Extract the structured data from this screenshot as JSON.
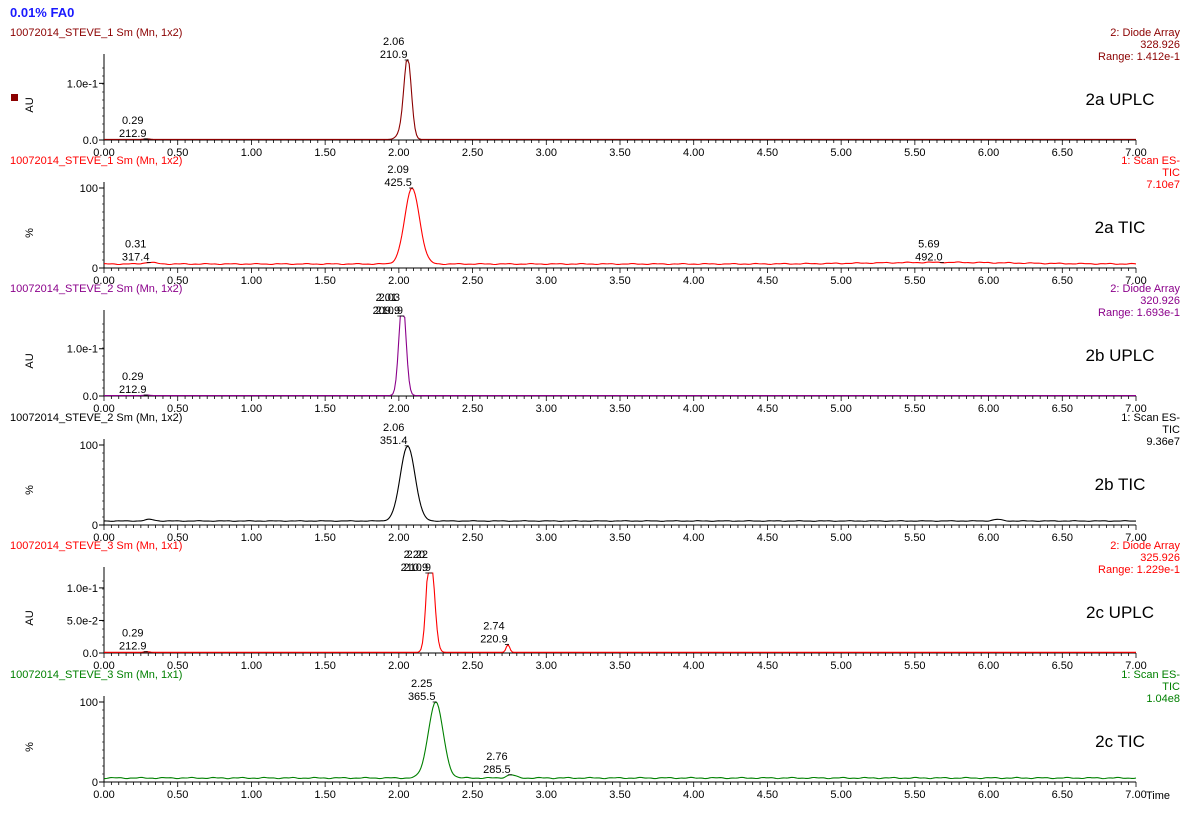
{
  "page": {
    "title": "0.01% FA0",
    "x_axis_label": "Time"
  },
  "colors": {
    "title": "#1a1aff",
    "axis": "#000000",
    "panel_a_uv": "#8b0000",
    "panel_a_tic": "#ff0000",
    "panel_b_uv": "#8b008b",
    "panel_b_tic": "#000000",
    "panel_c_uv": "#ff0000",
    "panel_c_tic": "#008000"
  },
  "chart_data": [
    {
      "type": "line",
      "sample": "10072014_STEVE_1 Sm (Mn, 1x2)",
      "color": "#8b0000",
      "trace_label": "2a UPLC",
      "header_right": [
        "2: Diode Array",
        "328.926",
        "Range: 1.412e-1"
      ],
      "ylabel": "AU",
      "xlim": [
        0,
        7
      ],
      "ylim": [
        0,
        0.1412
      ],
      "yticks": [
        {
          "value": 0,
          "label": "0.0"
        },
        {
          "value": 0.1,
          "label": "1.0e-1"
        }
      ],
      "baseline": 0.001,
      "noise": 0,
      "peaks": [
        {
          "time": 0.29,
          "height": 0.001,
          "width": 0.02,
          "label": "212.9"
        },
        {
          "time": 2.06,
          "height": 0.1412,
          "width": 0.025,
          "label": "210.9"
        },
        {
          "time": 2.02,
          "height": 0.012,
          "width": 0.03,
          "label": null
        }
      ]
    },
    {
      "type": "line",
      "sample": "10072014_STEVE_1 Sm (Mn, 1x2)",
      "color": "#ff0000",
      "trace_label": "2a TIC",
      "header_right": [
        "1: Scan ES-",
        "TIC",
        "7.10e7"
      ],
      "ylabel": "%",
      "xlim": [
        0,
        7
      ],
      "ylim": [
        0,
        100
      ],
      "yticks": [
        {
          "value": 0,
          "label": "0"
        },
        {
          "value": 100,
          "label": "100"
        }
      ],
      "baseline": 5,
      "noise": 0.8,
      "peaks": [
        {
          "time": 0.31,
          "height": 2,
          "width": 0.04,
          "label": "317.4"
        },
        {
          "time": 2.09,
          "height": 95,
          "width": 0.05,
          "label": "425.5"
        },
        {
          "time": 5.69,
          "height": 2,
          "width": 0.5,
          "label": "492.0"
        }
      ]
    },
    {
      "type": "line",
      "sample": "10072014_STEVE_2 Sm (Mn, 1x2)",
      "color": "#8b008b",
      "trace_label": "2b UPLC",
      "header_right": [
        "2: Diode Array",
        "320.926",
        "Range: 1.693e-1"
      ],
      "ylabel": "AU",
      "xlim": [
        0,
        7
      ],
      "ylim": [
        0,
        0.1693
      ],
      "yticks": [
        {
          "value": 0,
          "label": "0.0"
        },
        {
          "value": 0.1,
          "label": "1.0e-1"
        }
      ],
      "baseline": 0.001,
      "noise": 0,
      "peaks": [
        {
          "time": 0.29,
          "height": 0.001,
          "width": 0.02,
          "label": "212.9"
        },
        {
          "time": 2.03,
          "height": 0.16,
          "width": 0.022,
          "label": "210.9"
        },
        {
          "time": 2.01,
          "height": 0.065,
          "width": 0.02,
          "label": "209.9"
        }
      ]
    },
    {
      "type": "line",
      "sample": "10072014_STEVE_2 Sm (Mn, 1x2)",
      "color": "#000000",
      "trace_label": "2b TIC",
      "header_right": [
        "1: Scan ES-",
        "TIC",
        "9.36e7"
      ],
      "ylabel": "%",
      "xlim": [
        0,
        7
      ],
      "ylim": [
        0,
        100
      ],
      "yticks": [
        {
          "value": 0,
          "label": "0"
        },
        {
          "value": 100,
          "label": "100"
        }
      ],
      "baseline": 5,
      "noise": 0.5,
      "peaks": [
        {
          "time": 2.06,
          "height": 94,
          "width": 0.05,
          "label": "351.4"
        },
        {
          "time": 0.31,
          "height": 2,
          "width": 0.03,
          "label": null
        },
        {
          "time": 6.06,
          "height": 2,
          "width": 0.03,
          "label": null
        }
      ]
    },
    {
      "type": "line",
      "sample": "10072014_STEVE_3 Sm (Mn, 1x1)",
      "color": "#ff0000",
      "trace_label": "2c UPLC",
      "header_right": [
        "2: Diode Array",
        "325.926",
        "Range: 1.229e-1"
      ],
      "ylabel": "AU",
      "xlim": [
        0,
        7
      ],
      "ylim": [
        0,
        0.1229
      ],
      "yticks": [
        {
          "value": 0,
          "label": "0.0"
        },
        {
          "value": 0.05,
          "label": "5.0e-2"
        },
        {
          "value": 0.1,
          "label": "1.0e-1"
        }
      ],
      "baseline": 0.001,
      "noise": 0,
      "peaks": [
        {
          "time": 0.29,
          "height": 0.001,
          "width": 0.02,
          "label": "212.9"
        },
        {
          "time": 2.22,
          "height": 0.1229,
          "width": 0.025,
          "label": "210.9"
        },
        {
          "time": 2.2,
          "height": 0.055,
          "width": 0.02,
          "label": "210.9"
        },
        {
          "time": 2.74,
          "height": 0.012,
          "width": 0.012,
          "label": "220.9"
        }
      ]
    },
    {
      "type": "line",
      "sample": "10072014_STEVE_3 Sm (Mn, 1x1)",
      "color": "#008000",
      "trace_label": "2c TIC",
      "header_right": [
        "1: Scan ES-",
        "TIC",
        "1.04e8"
      ],
      "ylabel": "%",
      "xlim": [
        0,
        7
      ],
      "ylim": [
        0,
        100
      ],
      "yticks": [
        {
          "value": 0,
          "label": "0"
        },
        {
          "value": 100,
          "label": "100"
        }
      ],
      "baseline": 5,
      "noise": 1.0,
      "peaks": [
        {
          "time": 2.25,
          "height": 95,
          "width": 0.05,
          "label": "365.5"
        },
        {
          "time": 2.76,
          "height": 4,
          "width": 0.03,
          "label": "285.5"
        }
      ]
    }
  ],
  "x_ticks": [
    "0.00",
    "0.50",
    "1.00",
    "1.50",
    "2.00",
    "2.50",
    "3.00",
    "3.50",
    "4.00",
    "4.50",
    "5.00",
    "5.50",
    "6.00",
    "6.50",
    "7.00"
  ]
}
